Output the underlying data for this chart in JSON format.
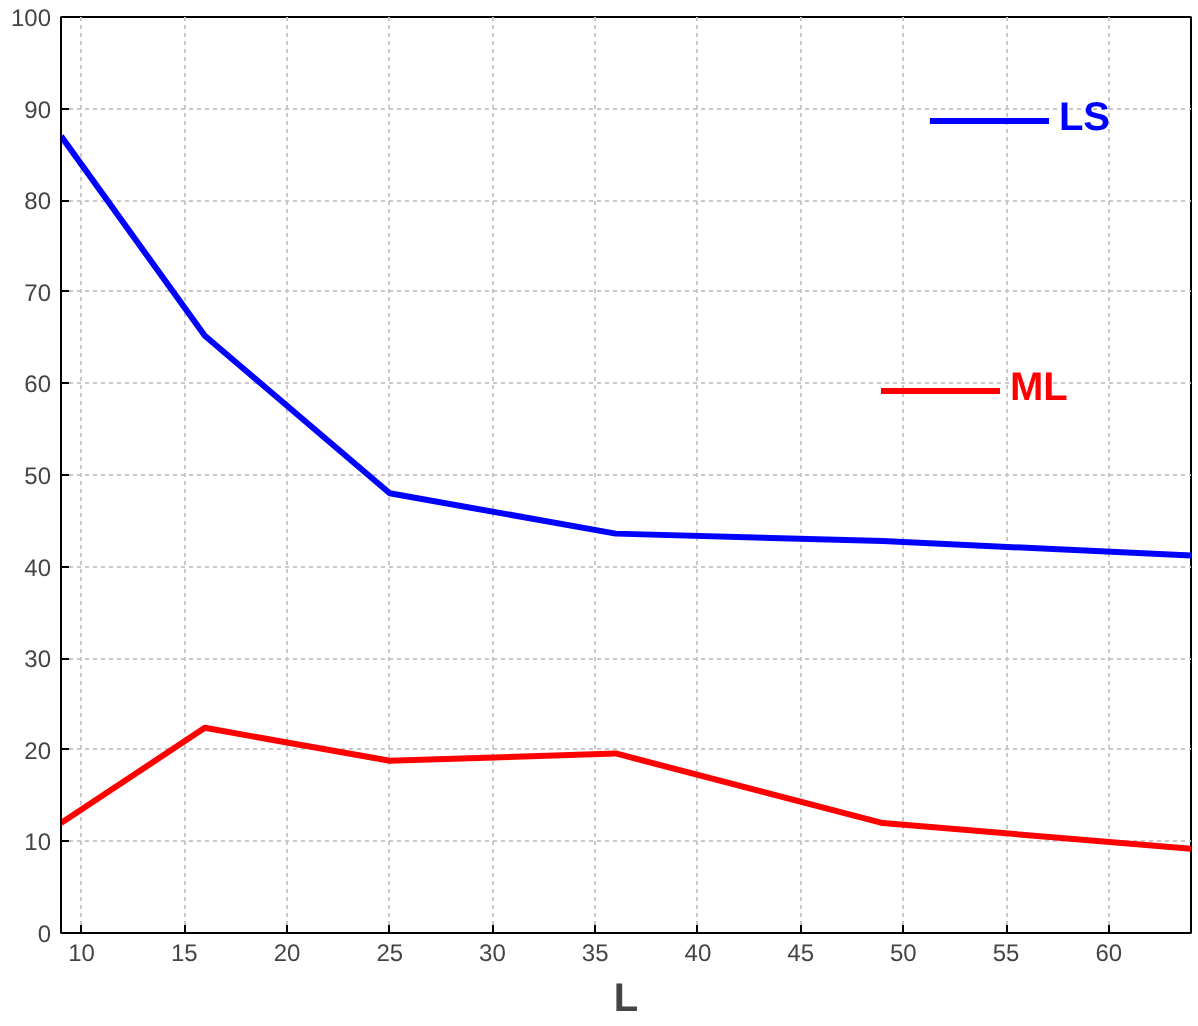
{
  "chart_data": {
    "type": "line",
    "xlabel": "L",
    "x": [
      9,
      16,
      25,
      36,
      49,
      64
    ],
    "series": [
      {
        "name": "LS",
        "color": "#0000ff",
        "values": [
          87,
          65.2,
          48,
          43.6,
          42.8,
          41.2
        ]
      },
      {
        "name": "ML",
        "color": "#ff0000",
        "values": [
          12,
          22.4,
          18.8,
          19.6,
          12,
          9.2
        ]
      }
    ],
    "xlim": [
      9,
      64
    ],
    "xticks": [
      10,
      15,
      20,
      25,
      30,
      35,
      40,
      45,
      50,
      55,
      60
    ],
    "ylim": [
      0,
      100
    ],
    "yticks": [
      0,
      10,
      20,
      30,
      40,
      50,
      60,
      70,
      80,
      90,
      100
    ],
    "grid": true,
    "legend": "top right",
    "line_style": "solid"
  }
}
